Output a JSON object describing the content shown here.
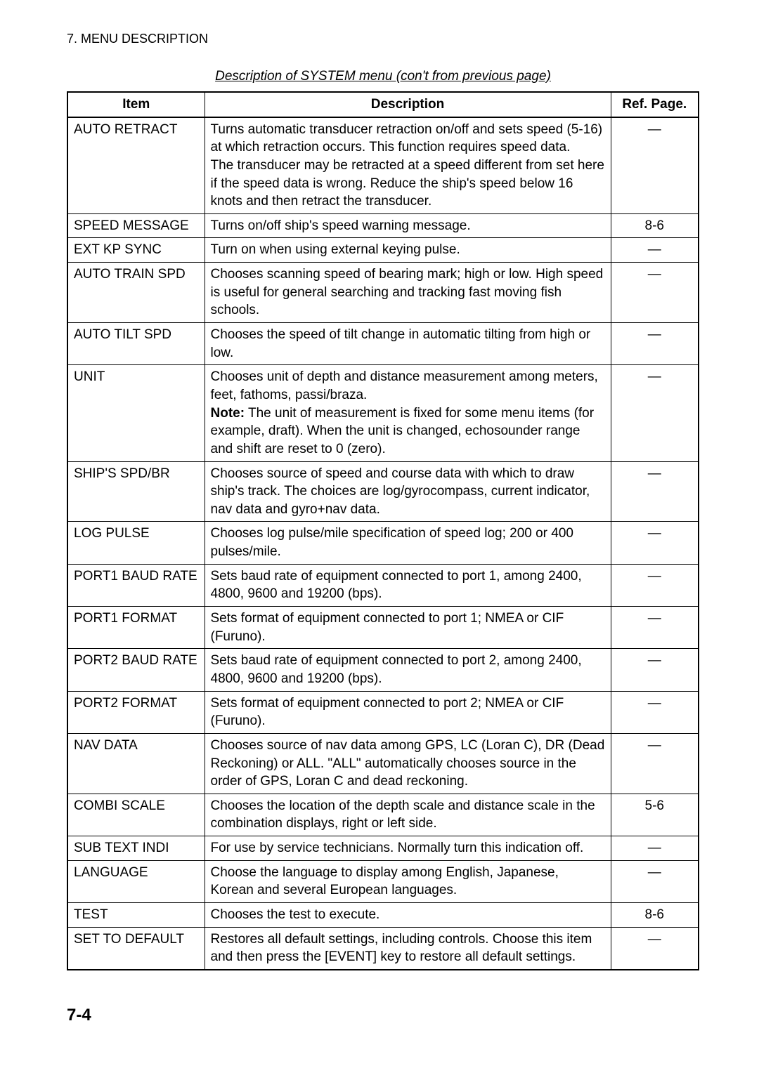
{
  "header": "7. MENU DESCRIPTION",
  "caption": "Description of SYSTEM menu (con't from previous page)",
  "columns": [
    "Item",
    "Description",
    "Ref. Page."
  ],
  "rows": [
    {
      "item": "AUTO RETRACT",
      "desc_parts": [
        {
          "text": "Turns automatic transducer retraction on/off and sets speed (5-16) at which retraction occurs. This function requires speed data."
        },
        {
          "text": "The transducer may be retracted at a speed different from set here if the speed data is wrong. Reduce the ship's speed below 16 knots and then retract the transducer."
        }
      ],
      "ref": "—"
    },
    {
      "item": "SPEED MESSAGE",
      "desc_parts": [
        {
          "text": "Turns on/off ship's speed warning message."
        }
      ],
      "ref": "8-6"
    },
    {
      "item": "EXT KP SYNC",
      "desc_parts": [
        {
          "text": "Turn on when using external keying pulse."
        }
      ],
      "ref": "—"
    },
    {
      "item": "AUTO TRAIN SPD",
      "desc_parts": [
        {
          "text": "Chooses scanning speed of bearing mark; high or low. High speed is useful for general searching and tracking fast moving fish schools."
        }
      ],
      "ref": "—"
    },
    {
      "item": "AUTO TILT SPD",
      "desc_parts": [
        {
          "text": "Chooses the speed of tilt change in automatic tilting from high or low."
        }
      ],
      "ref": "—"
    },
    {
      "item": "UNIT",
      "desc_parts": [
        {
          "text": "Chooses unit of depth and distance measurement among meters, feet, fathoms, passi/braza."
        },
        {
          "note": "Note:",
          "text": " The unit of measurement is fixed for some menu items (for example, draft). When the unit is changed, echosounder range and shift are reset to 0 (zero)."
        }
      ],
      "ref": "—"
    },
    {
      "item": "SHIP'S SPD/BR",
      "desc_parts": [
        {
          "text": "Chooses source of speed and course data with which to draw ship's track. The choices are log/gyrocompass, current indicator, nav data and gyro+nav data."
        }
      ],
      "ref": "—"
    },
    {
      "item": "LOG PULSE",
      "desc_parts": [
        {
          "text": "Chooses log pulse/mile specification of speed log; 200 or 400 pulses/mile."
        }
      ],
      "ref": "—"
    },
    {
      "item": "PORT1 BAUD RATE",
      "desc_parts": [
        {
          "text": "Sets baud rate of equipment connected to port 1, among 2400, 4800, 9600 and 19200 (bps)."
        }
      ],
      "ref": "—"
    },
    {
      "item": "PORT1 FORMAT",
      "desc_parts": [
        {
          "text": "Sets format of equipment connected to port 1; NMEA or CIF (Furuno)."
        }
      ],
      "ref": "—"
    },
    {
      "item": "PORT2 BAUD RATE",
      "desc_parts": [
        {
          "text": "Sets baud rate of equipment connected to port 2, among 2400, 4800, 9600 and 19200 (bps)."
        }
      ],
      "ref": "—"
    },
    {
      "item": "PORT2 FORMAT",
      "desc_parts": [
        {
          "text": "Sets format of equipment connected to port 2; NMEA or CIF (Furuno)."
        }
      ],
      "ref": "—"
    },
    {
      "item": "NAV DATA",
      "desc_parts": [
        {
          "text": "Chooses source of nav data among GPS, LC (Loran C), DR (Dead Reckoning) or ALL. \"ALL\" automatically chooses source in the order of GPS, Loran C and dead reckoning."
        }
      ],
      "ref": "—"
    },
    {
      "item": "COMBI SCALE",
      "desc_parts": [
        {
          "text": "Chooses the location of the depth scale and distance scale in the combination displays, right or left side."
        }
      ],
      "ref": "5-6"
    },
    {
      "item": "SUB TEXT INDI",
      "desc_parts": [
        {
          "text": "For use by service technicians. Normally turn this indication off."
        }
      ],
      "ref": "—"
    },
    {
      "item": "LANGUAGE",
      "desc_parts": [
        {
          "text": "Choose the language to display among English, Japanese, Korean and several European languages."
        }
      ],
      "ref": "—"
    },
    {
      "item": "TEST",
      "desc_parts": [
        {
          "text": "Chooses the test to execute."
        }
      ],
      "ref": "8-6"
    },
    {
      "item": "SET TO DEFAULT",
      "desc_parts": [
        {
          "text": "Restores all default settings, including controls. Choose this item and then press the [EVENT] key to restore all default settings."
        }
      ],
      "ref": "—"
    }
  ],
  "page_num": "7-4"
}
